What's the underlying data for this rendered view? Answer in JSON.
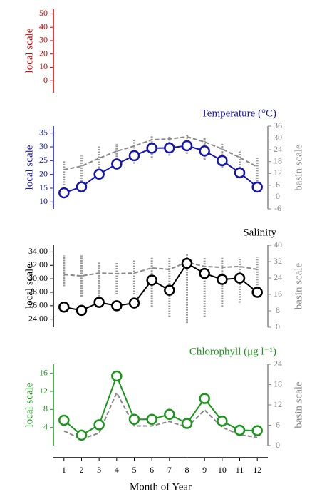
{
  "chart_data": [
    {
      "type": "line",
      "ylabel": "local scale",
      "axis_color": "#d00000",
      "x": [
        1,
        2,
        3,
        4,
        5,
        6,
        7,
        8,
        9,
        10,
        11,
        12
      ],
      "xlim": [
        0.4,
        12.6
      ],
      "ylim": [
        -9,
        54
      ],
      "yticks": [
        0,
        10,
        20,
        30,
        40,
        50
      ],
      "series": []
    },
    {
      "type": "line",
      "title": "Temperature (°C)",
      "ylabel": "local scale",
      "y2label": "basin scale",
      "axis_color": "#1414b4",
      "y2_color": "#888888",
      "x": [
        1,
        2,
        3,
        4,
        5,
        6,
        7,
        8,
        9,
        10,
        11,
        12
      ],
      "xlim": [
        0.4,
        12.6
      ],
      "ylim": [
        7.5,
        37.5
      ],
      "yticks": [
        10,
        15,
        20,
        25,
        30,
        35
      ],
      "y2lim": [
        -6,
        36
      ],
      "y2ticks": [
        -6,
        0,
        6,
        12,
        18,
        24,
        30,
        36
      ],
      "ranges": {
        "color": "#999999",
        "axis": "y2",
        "low": [
          6,
          8,
          11,
          14,
          17,
          20,
          21,
          22,
          19,
          15,
          11,
          8
        ],
        "high": [
          19,
          21,
          26,
          27,
          29,
          31,
          31,
          32,
          30,
          27,
          24,
          20
        ]
      },
      "series": [
        {
          "color": "#888888",
          "style": "dashed",
          "axis": "y2",
          "values": [
            13.9,
            15.7,
            19.7,
            23.3,
            25.9,
            29.1,
            29.5,
            30.6,
            28.0,
            24.4,
            20.1,
            15.3
          ]
        },
        {
          "color": "#1414b4",
          "style": "markers",
          "values": [
            13.3,
            15.5,
            20.1,
            23.8,
            26.8,
            29.5,
            29.6,
            30.4,
            28.5,
            25.0,
            20.6,
            15.4
          ]
        }
      ]
    },
    {
      "type": "line",
      "title": "Salinity",
      "ylabel": "local scale",
      "y2label": "basin scale",
      "axis_color": "#000000",
      "y2_color": "#888888",
      "x": [
        1,
        2,
        3,
        4,
        5,
        6,
        7,
        8,
        9,
        10,
        11,
        12
      ],
      "xlim": [
        0.4,
        12.6
      ],
      "ylim": [
        22.8,
        35
      ],
      "yticks": [
        {
          "value": 24,
          "label": "24.00"
        },
        {
          "value": 26,
          "label": "26.00"
        },
        {
          "value": 28,
          "label": "28.00"
        },
        {
          "value": 30,
          "label": "30.00"
        },
        {
          "value": 32,
          "label": "32.00"
        },
        {
          "value": 34,
          "label": "34.00"
        }
      ],
      "y2lim": [
        0,
        40
      ],
      "y2ticks": [
        0,
        8,
        16,
        24,
        32,
        40
      ],
      "ranges": {
        "color": "#999999",
        "axis": "y2",
        "low": [
          20,
          15,
          15,
          16,
          16,
          10,
          5,
          2,
          5,
          10,
          12,
          18
        ],
        "high": [
          35,
          35,
          32,
          32,
          33,
          34,
          34,
          36,
          34,
          34,
          34,
          34
        ]
      },
      "series": [
        {
          "color": "#888888",
          "style": "dashed",
          "axis": "y2",
          "values": [
            25.7,
            25.0,
            26.4,
            26.1,
            26.4,
            28.9,
            28.2,
            31.7,
            29.6,
            29.2,
            29.6,
            28.2
          ]
        },
        {
          "color": "#000000",
          "style": "markers",
          "values": [
            25.8,
            25.3,
            26.5,
            26.0,
            26.4,
            29.8,
            28.3,
            32.3,
            30.8,
            29.9,
            30.1,
            28.0
          ]
        }
      ]
    },
    {
      "type": "line",
      "title": "Chlorophyll (μg l⁻¹)",
      "ylabel": "local scale",
      "y2label": "basin scale",
      "axis_color": "#1a961a",
      "y2_color": "#888888",
      "x": [
        1,
        2,
        3,
        4,
        5,
        6,
        7,
        8,
        9,
        10,
        11,
        12
      ],
      "xlim": [
        0.4,
        12.6
      ],
      "xticks": [
        1,
        2,
        3,
        4,
        5,
        6,
        7,
        8,
        9,
        10,
        11,
        12
      ],
      "xlabel": "Month of Year",
      "ylim": [
        0,
        18
      ],
      "yticks": [
        4,
        8,
        12,
        16
      ],
      "y2lim": [
        0,
        24
      ],
      "y2ticks": [
        0,
        6,
        12,
        18,
        24
      ],
      "series": [
        {
          "color": "#888888",
          "style": "dashed",
          "axis": "y2",
          "values": [
            4.3,
            1.9,
            3.7,
            15.6,
            5.8,
            5.8,
            7.1,
            5.4,
            10.5,
            5.4,
            3.2,
            2.4
          ]
        },
        {
          "color": "#1a961a",
          "style": "markers",
          "values": [
            5.6,
            2.3,
            4.6,
            15.4,
            5.8,
            5.8,
            6.9,
            4.9,
            10.4,
            5.4,
            3.4,
            3.3
          ]
        }
      ]
    }
  ]
}
